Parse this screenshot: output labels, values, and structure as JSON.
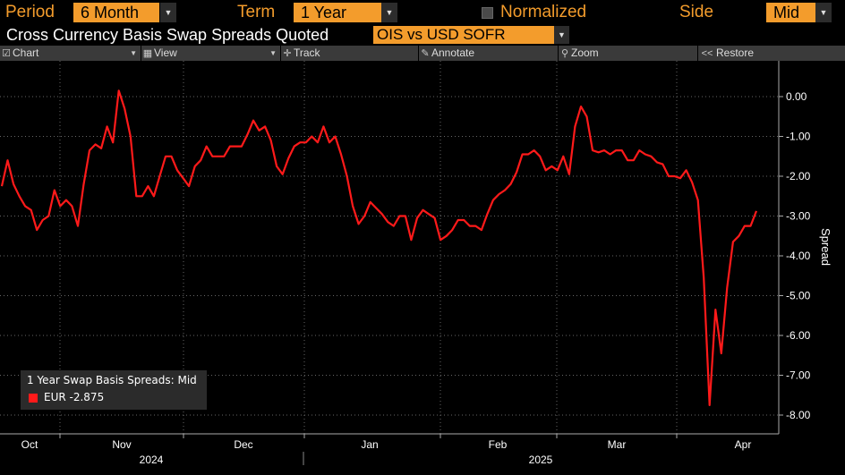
{
  "controls": {
    "period_label": "Period",
    "period_value": "6 Month",
    "term_label": "Term",
    "term_value": "1 Year",
    "normalized_label": "Normalized",
    "side_label": "Side",
    "side_value": "Mid"
  },
  "header": {
    "title": "Cross Currency Basis Swap Spreads Quoted",
    "quote_value": "OIS vs USD SOFR"
  },
  "toolbar": {
    "chart": "Chart",
    "view": "View",
    "track": "Track",
    "annotate": "Annotate",
    "zoom": "Zoom",
    "restore": "Restore"
  },
  "legend": {
    "title": "1 Year Swap Basis Spreads: Mid",
    "entry": "EUR  -2.875"
  },
  "colors": {
    "accent": "#f39c2c",
    "series": "#ff1a1a",
    "background": "#000000"
  },
  "chart_data": {
    "type": "line",
    "ylabel": "Spread",
    "ylim": [
      -8.5,
      0.5
    ],
    "yticks": [
      "0.00",
      "-1.00",
      "-2.00",
      "-3.00",
      "-4.00",
      "-5.00",
      "-6.00",
      "-7.00",
      "-8.00"
    ],
    "xlabels": [
      "Oct",
      "Nov",
      "Dec",
      "Jan",
      "Feb",
      "Mar",
      "Apr"
    ],
    "years": [
      "2024",
      "2025"
    ],
    "grid": true,
    "legend_position": "bottom-left",
    "series": [
      {
        "name": "EUR",
        "values": [
          -2.25,
          -1.6,
          -2.2,
          -2.5,
          -2.75,
          -2.85,
          -3.35,
          -3.1,
          -3.0,
          -2.35,
          -2.75,
          -2.6,
          -2.75,
          -3.25,
          -2.2,
          -1.35,
          -1.2,
          -1.3,
          -0.75,
          -1.15,
          0.15,
          -0.3,
          -1.0,
          -2.5,
          -2.5,
          -2.25,
          -2.5,
          -2.0,
          -1.5,
          -1.5,
          -1.85,
          -2.05,
          -2.25,
          -1.75,
          -1.6,
          -1.25,
          -1.5,
          -1.5,
          -1.5,
          -1.25,
          -1.25,
          -1.25,
          -0.95,
          -0.6,
          -0.85,
          -0.75,
          -1.1,
          -1.75,
          -1.95,
          -1.55,
          -1.25,
          -1.15,
          -1.15,
          -1.0,
          -1.15,
          -0.75,
          -1.15,
          -1.0,
          -1.45,
          -2.0,
          -2.75,
          -3.2,
          -3.0,
          -2.65,
          -2.8,
          -2.95,
          -3.15,
          -3.25,
          -3.0,
          -3.0,
          -3.6,
          -3.05,
          -2.85,
          -2.95,
          -3.05,
          -3.6,
          -3.5,
          -3.35,
          -3.1,
          -3.1,
          -3.25,
          -3.25,
          -3.35,
          -2.95,
          -2.6,
          -2.45,
          -2.35,
          -2.2,
          -1.9,
          -1.45,
          -1.45,
          -1.35,
          -1.5,
          -1.85,
          -1.75,
          -1.85,
          -1.5,
          -1.95,
          -0.75,
          -0.25,
          -0.5,
          -1.35,
          -1.4,
          -1.35,
          -1.45,
          -1.35,
          -1.35,
          -1.6,
          -1.6,
          -1.35,
          -1.45,
          -1.5,
          -1.65,
          -1.7,
          -2.0,
          -2.0,
          -2.05,
          -1.85,
          -2.15,
          -2.6,
          -4.55,
          -7.75,
          -5.35,
          -6.45,
          -4.8,
          -3.65,
          -3.5,
          -3.25,
          -3.25,
          -2.875
        ]
      }
    ]
  }
}
